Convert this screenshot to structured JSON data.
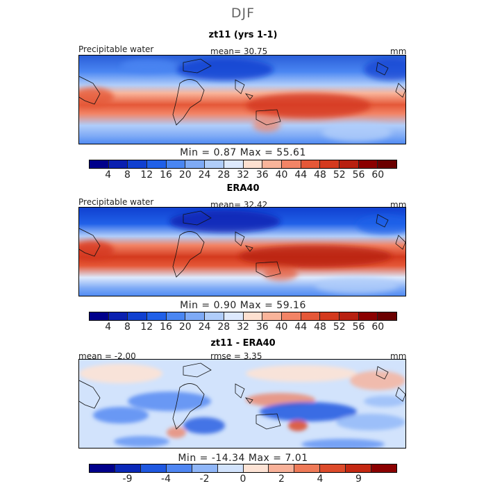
{
  "season": "DJF",
  "panels": [
    {
      "title": "zt11 (yrs 1-1)",
      "left_label": "Precipitable water",
      "center_label": "mean=   30.75",
      "units": "mm",
      "min_max": "Min =    0.87  Max =   55.61",
      "colorbar_labels": [
        "4",
        "8",
        "12",
        "16",
        "20",
        "24",
        "28",
        "32",
        "36",
        "40",
        "44",
        "48",
        "52",
        "56",
        "60"
      ]
    },
    {
      "title": "ERA40",
      "left_label": "Precipitable water",
      "center_label": "mean=   32.42",
      "units": "mm",
      "min_max": "Min =    0.90  Max =   59.16",
      "colorbar_labels": [
        "4",
        "8",
        "12",
        "16",
        "20",
        "24",
        "28",
        "32",
        "36",
        "40",
        "44",
        "48",
        "52",
        "56",
        "60"
      ]
    },
    {
      "title": "zt11 - ERA40",
      "left_label": "mean =   -2.00",
      "center_label": "rmse =     3.35",
      "units": "mm",
      "min_max": "Min = -14.34  Max =    7.01",
      "colorbar_labels": [
        "-9",
        "-4",
        "-2",
        "0",
        "2",
        "4",
        "9"
      ]
    }
  ],
  "colors": {
    "abs_scale": [
      "#00008b",
      "#0a20b0",
      "#1040d0",
      "#2060e8",
      "#4a86f2",
      "#7eaaf6",
      "#b0cdfa",
      "#dde9fd",
      "#fde0d0",
      "#f9b49a",
      "#f28466",
      "#e55838",
      "#d43a1e",
      "#b82010",
      "#8b0000",
      "#6b0000"
    ],
    "diff_scale": [
      "#00008b",
      "#0a28b8",
      "#1f58e0",
      "#4f86f2",
      "#8fb6f8",
      "#d2e3fc",
      "#fde3d5",
      "#f8b199",
      "#ef7a58",
      "#dd4b2b",
      "#c42812",
      "#8b0000"
    ]
  }
}
